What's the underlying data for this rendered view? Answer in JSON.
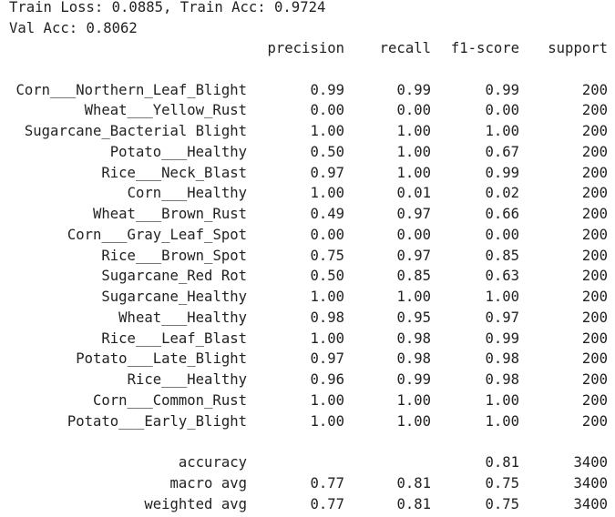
{
  "train_line": "Train Loss: 0.0885, Train Acc: 0.9724",
  "val_line": "Val Acc: 0.8062",
  "report": {
    "headers": [
      "precision",
      "recall",
      "f1-score",
      "support"
    ],
    "rows": [
      [
        "Corn___Northern_Leaf_Blight",
        "0.99",
        "0.99",
        "0.99",
        "200"
      ],
      [
        "Wheat___Yellow_Rust",
        "0.00",
        "0.00",
        "0.00",
        "200"
      ],
      [
        "Sugarcane_Bacterial Blight",
        "1.00",
        "1.00",
        "1.00",
        "200"
      ],
      [
        "Potato___Healthy",
        "0.50",
        "1.00",
        "0.67",
        "200"
      ],
      [
        "Rice___Neck_Blast",
        "0.97",
        "1.00",
        "0.99",
        "200"
      ],
      [
        "Corn___Healthy",
        "1.00",
        "0.01",
        "0.02",
        "200"
      ],
      [
        "Wheat___Brown_Rust",
        "0.49",
        "0.97",
        "0.66",
        "200"
      ],
      [
        "Corn___Gray_Leaf_Spot",
        "0.00",
        "0.00",
        "0.00",
        "200"
      ],
      [
        "Rice___Brown_Spot",
        "0.75",
        "0.97",
        "0.85",
        "200"
      ],
      [
        "Sugarcane_Red Rot",
        "0.50",
        "0.85",
        "0.63",
        "200"
      ],
      [
        "Sugarcane_Healthy",
        "1.00",
        "1.00",
        "1.00",
        "200"
      ],
      [
        "Wheat___Healthy",
        "0.98",
        "0.95",
        "0.97",
        "200"
      ],
      [
        "Rice___Leaf_Blast",
        "1.00",
        "0.98",
        "0.99",
        "200"
      ],
      [
        "Potato___Late_Blight",
        "0.97",
        "0.98",
        "0.98",
        "200"
      ],
      [
        "Rice___Healthy",
        "0.96",
        "0.99",
        "0.98",
        "200"
      ],
      [
        "Corn___Common_Rust",
        "1.00",
        "1.00",
        "1.00",
        "200"
      ],
      [
        "Potato___Early_Blight",
        "1.00",
        "1.00",
        "1.00",
        "200"
      ]
    ],
    "summary": [
      [
        "accuracy",
        "",
        "",
        "0.81",
        "3400"
      ],
      [
        "macro avg",
        "0.77",
        "0.81",
        "0.75",
        "3400"
      ],
      [
        "weighted avg",
        "0.77",
        "0.81",
        "0.75",
        "3400"
      ]
    ]
  }
}
